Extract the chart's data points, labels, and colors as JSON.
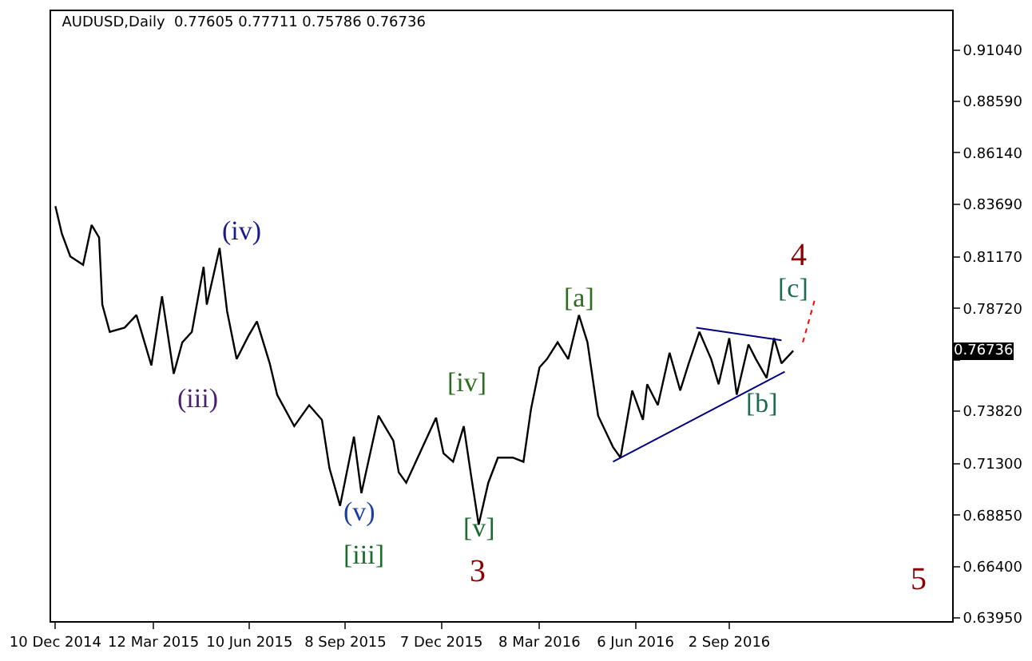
{
  "chart_data": {
    "type": "line",
    "title": "AUDUSD,Daily  0.77605 0.77711 0.75786 0.76736",
    "x": [
      "2014-12-10",
      "2014-12-16",
      "2014-12-24",
      "2015-01-05",
      "2015-01-13",
      "2015-01-20",
      "2015-01-23",
      "2015-01-30",
      "2015-02-13",
      "2015-02-24",
      "2015-03-10",
      "2015-03-20",
      "2015-03-31",
      "2015-04-08",
      "2015-04-17",
      "2015-04-28",
      "2015-05-01",
      "2015-05-13",
      "2015-05-20",
      "2015-05-29",
      "2015-06-09",
      "2015-06-17",
      "2015-06-29",
      "2015-07-06",
      "2015-07-22",
      "2015-08-05",
      "2015-08-17",
      "2015-08-24",
      "2015-09-03",
      "2015-09-16",
      "2015-09-23",
      "2015-10-09",
      "2015-10-23",
      "2015-10-28",
      "2015-11-04",
      "2015-11-13",
      "2015-12-02",
      "2015-12-09",
      "2015-12-18",
      "2015-12-28",
      "2016-01-04",
      "2016-01-11",
      "2016-01-20",
      "2016-01-29",
      "2016-02-12",
      "2016-02-22",
      "2016-02-29",
      "2016-03-08",
      "2016-03-15",
      "2016-03-25",
      "2016-04-04",
      "2016-04-14",
      "2016-04-22",
      "2016-05-02",
      "2016-05-16",
      "2016-05-23",
      "2016-06-03",
      "2016-06-13",
      "2016-06-17",
      "2016-06-27",
      "2016-07-08",
      "2016-07-18",
      "2016-07-26",
      "2016-08-05",
      "2016-08-16",
      "2016-08-23",
      "2016-09-02",
      "2016-09-09",
      "2016-09-20",
      "2016-09-27",
      "2016-10-07",
      "2016-10-14",
      "2016-10-21",
      "2016-11-01"
    ],
    "series": [
      {
        "color": "#000000",
        "values": [
          0.836,
          0.823,
          0.812,
          0.808,
          0.827,
          0.821,
          0.789,
          0.776,
          0.778,
          0.784,
          0.76,
          0.793,
          0.756,
          0.771,
          0.776,
          0.807,
          0.789,
          0.816,
          0.786,
          0.763,
          0.774,
          0.781,
          0.761,
          0.746,
          0.731,
          0.741,
          0.734,
          0.711,
          0.693,
          0.726,
          0.699,
          0.736,
          0.724,
          0.709,
          0.704,
          0.714,
          0.735,
          0.718,
          0.714,
          0.731,
          0.707,
          0.684,
          0.704,
          0.716,
          0.716,
          0.714,
          0.739,
          0.759,
          0.763,
          0.771,
          0.763,
          0.784,
          0.771,
          0.736,
          0.721,
          0.716,
          0.748,
          0.734,
          0.751,
          0.741,
          0.766,
          0.748,
          0.761,
          0.776,
          0.763,
          0.751,
          0.773,
          0.746,
          0.77,
          0.763,
          0.754,
          0.773,
          0.761,
          0.767
        ]
      },
      {
        "color": "#000080",
        "x": [
          "2016-08-02",
          "2016-10-21"
        ],
        "values": [
          0.778,
          0.772
        ]
      },
      {
        "color": "#000080",
        "x": [
          "2016-05-16",
          "2016-10-24"
        ],
        "values": [
          0.714,
          0.757
        ]
      },
      {
        "color": "#ff0000",
        "line_style": "dotted",
        "x": [
          "2016-11-10",
          "2016-11-21"
        ],
        "values": [
          0.771,
          0.791
        ]
      }
    ],
    "xlim": [
      "2014-12-06",
      "2017-03-30"
    ],
    "xticks": [
      {
        "value": "2014-12-10",
        "label": "10 Dec 2014"
      },
      {
        "value": "2015-03-12",
        "label": "12 Mar 2015"
      },
      {
        "value": "2015-06-10",
        "label": "10 Jun 2015"
      },
      {
        "value": "2015-09-08",
        "label": "8 Sep 2015"
      },
      {
        "value": "2015-12-07",
        "label": "7 Dec 2015"
      },
      {
        "value": "2016-03-08",
        "label": "8 Mar 2016"
      },
      {
        "value": "2016-06-06",
        "label": "6 Jun 2016"
      },
      {
        "value": "2016-09-02",
        "label": "2 Sep 2016"
      }
    ],
    "ylim": [
      0.638,
      0.929
    ],
    "yticks": [
      {
        "value": 0.6395,
        "label": "0.63950"
      },
      {
        "value": 0.664,
        "label": "0.66400"
      },
      {
        "value": 0.6885,
        "label": "0.68850"
      },
      {
        "value": 0.713,
        "label": "0.71300"
      },
      {
        "value": 0.7382,
        "label": "0.73820"
      },
      {
        "value": 0.7627,
        "label": null
      },
      {
        "value": 0.7872,
        "label": "0.78720"
      },
      {
        "value": 0.8117,
        "label": "0.81170"
      },
      {
        "value": 0.8369,
        "label": "0.83690"
      },
      {
        "value": 0.8614,
        "label": "0.86140"
      },
      {
        "value": 0.8859,
        "label": "0.88590"
      },
      {
        "value": 0.9104,
        "label": "0.91040"
      }
    ],
    "annotations": [
      "(iv)",
      "(iii)",
      "(v)",
      "[iii]",
      "[iv]",
      "[v]",
      "3",
      "[a]",
      "[b]",
      "[c]",
      "4",
      "5",
      "0.76736"
    ],
    "marker": "none",
    "line_style": "solid"
  }
}
